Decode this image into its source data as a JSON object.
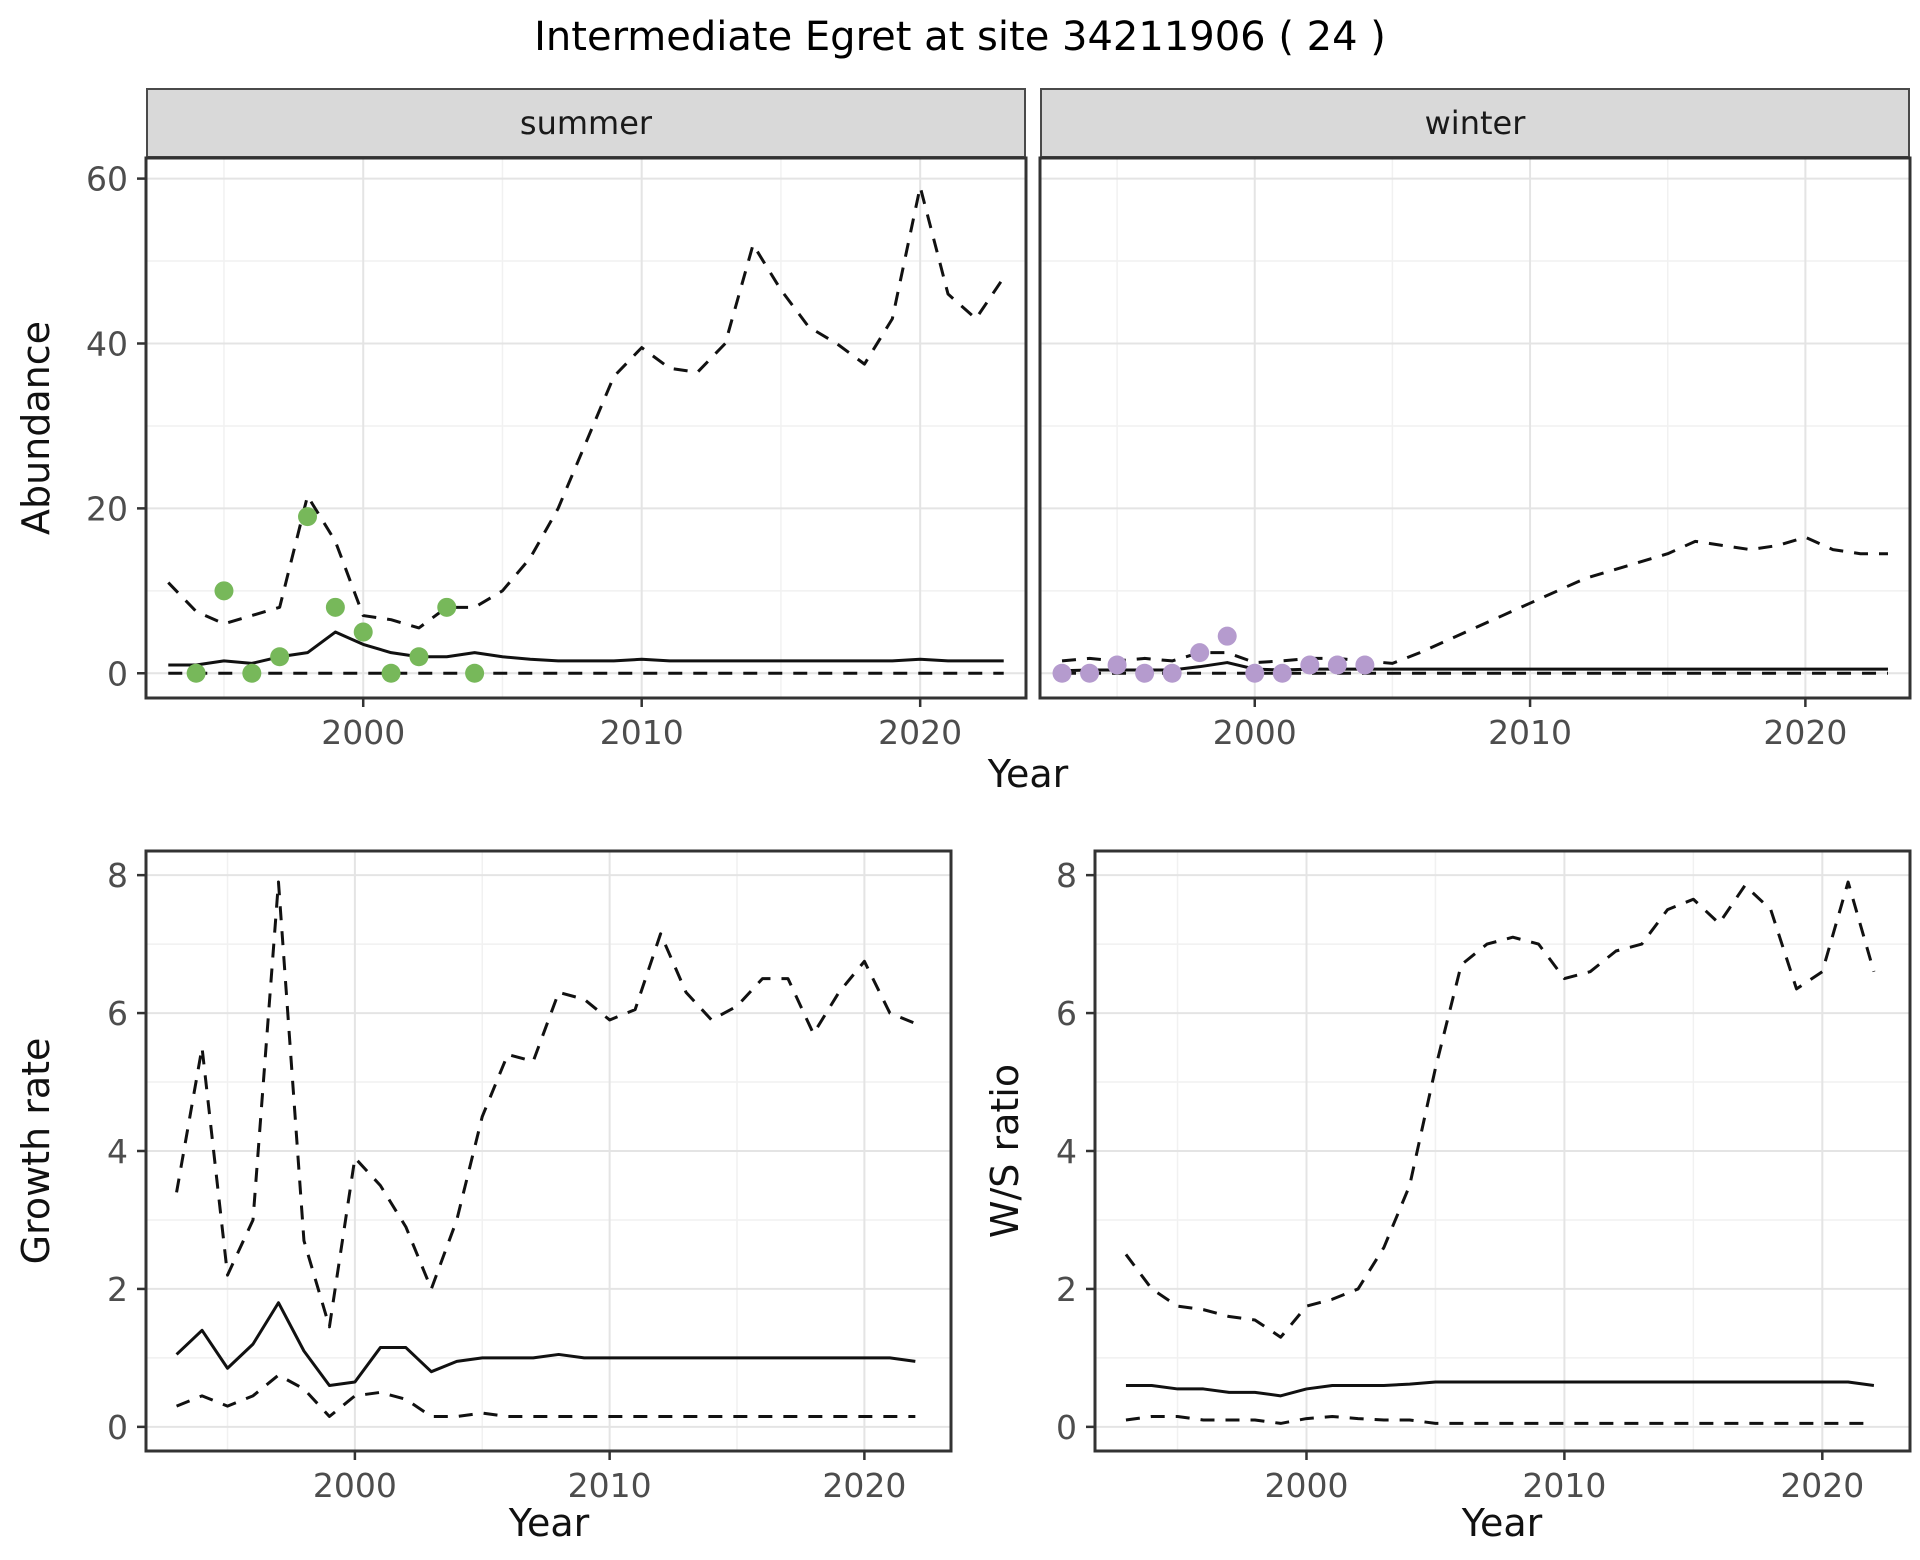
{
  "title": "Intermediate Egret at site 34211906 ( 24 )",
  "panels": {
    "abundance": {
      "ylabel": "Abundance",
      "xlabel": "Year",
      "facets": [
        {
          "label": "summer"
        },
        {
          "label": "winter"
        }
      ]
    },
    "growth": {
      "ylabel": "Growth rate",
      "xlabel": "Year"
    },
    "ws": {
      "ylabel": "W/S ratio",
      "xlabel": "Year"
    }
  },
  "colors": {
    "line": "#111111",
    "border": "#333333",
    "grid_major": "#e4e4e4",
    "grid_minor": "#f1f1f1",
    "tick_text": "#4d4d4d",
    "strip_bg": "#d9d9d9",
    "summer_points": "#77b85a",
    "winter_points": "#b59bce"
  },
  "chart_data": [
    {
      "name": "summer-abundance",
      "type": "line",
      "facet": "summer",
      "xlabel": "Year",
      "ylabel": "Abundance",
      "x": [
        1993,
        1994,
        1995,
        1996,
        1997,
        1998,
        1999,
        2000,
        2001,
        2002,
        2003,
        2004,
        2005,
        2006,
        2007,
        2008,
        2009,
        2010,
        2011,
        2012,
        2013,
        2014,
        2015,
        2016,
        2017,
        2018,
        2019,
        2020,
        2021,
        2022,
        2023
      ],
      "xlim": [
        1992.2,
        2023.8
      ],
      "ylim": [
        -3,
        62.5
      ],
      "xticks": [
        2000,
        2010,
        2020
      ],
      "xminor": [
        1995,
        2005,
        2015
      ],
      "yticks": [
        0,
        20,
        40,
        60
      ],
      "yminor": [
        10,
        30,
        50
      ],
      "show_ytick_labels": true,
      "series": [
        {
          "name": "upper-ci",
          "style": "dashed",
          "values": [
            11,
            7.5,
            6,
            7,
            8,
            21.5,
            16,
            7,
            6.5,
            5.5,
            8,
            8,
            10,
            14,
            20,
            28,
            36,
            39.5,
            37,
            36.5,
            40,
            52,
            46.5,
            42,
            40,
            37.5,
            43,
            59,
            46,
            43,
            48
          ]
        },
        {
          "name": "median",
          "style": "solid",
          "values": [
            1,
            1,
            1.5,
            1.2,
            2,
            2.5,
            5,
            3.5,
            2.5,
            2,
            2,
            2.5,
            2,
            1.7,
            1.5,
            1.5,
            1.5,
            1.7,
            1.5,
            1.5,
            1.5,
            1.5,
            1.5,
            1.5,
            1.5,
            1.5,
            1.5,
            1.7,
            1.5,
            1.5,
            1.5
          ]
        },
        {
          "name": "lower-ci",
          "style": "dashed",
          "values": [
            0,
            0,
            0,
            0,
            0,
            0,
            0,
            0,
            0,
            0,
            0,
            0,
            0,
            0,
            0,
            0,
            0,
            0,
            0,
            0,
            0,
            0,
            0,
            0,
            0,
            0,
            0,
            0,
            0,
            0,
            0
          ]
        }
      ],
      "points": {
        "name": "observed-counts",
        "color_key": "summer_points",
        "x": [
          1994,
          1995,
          1996,
          1997,
          1998,
          1999,
          2000,
          2001,
          2002,
          2003,
          2004
        ],
        "y": [
          0,
          10,
          0,
          2,
          19,
          8,
          5,
          0,
          2,
          8,
          0
        ]
      }
    },
    {
      "name": "winter-abundance",
      "type": "line",
      "facet": "winter",
      "xlabel": "Year",
      "ylabel": "Abundance",
      "x": [
        1993,
        1994,
        1995,
        1996,
        1997,
        1998,
        1999,
        2000,
        2001,
        2002,
        2003,
        2004,
        2005,
        2006,
        2007,
        2008,
        2009,
        2010,
        2011,
        2012,
        2013,
        2014,
        2015,
        2016,
        2017,
        2018,
        2019,
        2020,
        2021,
        2022,
        2023
      ],
      "xlim": [
        1992.2,
        2023.8
      ],
      "ylim": [
        -3,
        62.5
      ],
      "xticks": [
        2000,
        2010,
        2020
      ],
      "xminor": [
        1995,
        2005,
        2015
      ],
      "yticks": [
        0,
        20,
        40,
        60
      ],
      "yminor": [
        10,
        30,
        50
      ],
      "show_ytick_labels": false,
      "series": [
        {
          "name": "upper-ci",
          "style": "dashed",
          "values": [
            1.5,
            1.8,
            1.5,
            1.8,
            1.5,
            2.5,
            2.5,
            1.3,
            1.5,
            1.8,
            1.8,
            1.5,
            1.2,
            2.5,
            4,
            5.5,
            7,
            8.5,
            10,
            11.5,
            12.5,
            13.5,
            14.5,
            16,
            15.5,
            15,
            15.5,
            16.5,
            15,
            14.5,
            14.5
          ]
        },
        {
          "name": "median",
          "style": "solid",
          "values": [
            0.3,
            0.4,
            0.4,
            0.4,
            0.4,
            0.8,
            1.3,
            0.5,
            0.4,
            0.5,
            0.5,
            0.5,
            0.5,
            0.5,
            0.5,
            0.5,
            0.5,
            0.5,
            0.5,
            0.5,
            0.5,
            0.5,
            0.5,
            0.5,
            0.5,
            0.5,
            0.5,
            0.5,
            0.5,
            0.5,
            0.5
          ]
        },
        {
          "name": "lower-ci",
          "style": "dashed",
          "values": [
            0,
            0,
            0,
            0,
            0,
            0,
            0,
            0,
            0,
            0,
            0,
            0,
            0,
            0,
            0,
            0,
            0,
            0,
            0,
            0,
            0,
            0,
            0,
            0,
            0,
            0,
            0,
            0,
            0,
            0,
            0
          ]
        }
      ],
      "points": {
        "name": "observed-counts",
        "color_key": "winter_points",
        "x": [
          1993,
          1994,
          1995,
          1996,
          1997,
          1998,
          1999,
          2000,
          2001,
          2002,
          2003,
          2004
        ],
        "y": [
          0,
          0,
          1,
          0,
          0,
          2.5,
          4.5,
          0,
          0,
          1,
          1,
          1
        ]
      }
    },
    {
      "name": "growth-rate",
      "type": "line",
      "xlabel": "Year",
      "ylabel": "Growth rate",
      "x": [
        1993,
        1994,
        1995,
        1996,
        1997,
        1998,
        1999,
        2000,
        2001,
        2002,
        2003,
        2004,
        2005,
        2006,
        2007,
        2008,
        2009,
        2010,
        2011,
        2012,
        2013,
        2014,
        2015,
        2016,
        2017,
        2018,
        2019,
        2020,
        2021,
        2022
      ],
      "xlim": [
        1991.8,
        2023.4
      ],
      "ylim": [
        -0.35,
        8.35
      ],
      "xticks": [
        2000,
        2010,
        2020
      ],
      "xminor": [
        1995,
        2005,
        2015
      ],
      "yticks": [
        0,
        2,
        4,
        6,
        8
      ],
      "yminor": [
        1,
        3,
        5,
        7
      ],
      "show_ytick_labels": true,
      "series": [
        {
          "name": "upper-ci",
          "style": "dashed",
          "values": [
            3.4,
            5.5,
            2.2,
            3.0,
            7.9,
            2.7,
            1.45,
            3.9,
            3.5,
            2.9,
            2.0,
            3.0,
            4.5,
            5.4,
            5.3,
            6.3,
            6.2,
            5.9,
            6.05,
            7.15,
            6.3,
            5.9,
            6.1,
            6.5,
            6.5,
            5.7,
            6.3,
            6.75,
            6.0,
            5.85
          ]
        },
        {
          "name": "median",
          "style": "solid",
          "values": [
            1.05,
            1.4,
            0.85,
            1.2,
            1.8,
            1.1,
            0.6,
            0.65,
            1.15,
            1.15,
            0.8,
            0.95,
            1.0,
            1.0,
            1.0,
            1.05,
            1.0,
            1.0,
            1.0,
            1.0,
            1.0,
            1.0,
            1.0,
            1.0,
            1.0,
            1.0,
            1.0,
            1.0,
            1.0,
            0.95
          ]
        },
        {
          "name": "lower-ci",
          "style": "dashed",
          "values": [
            0.3,
            0.45,
            0.3,
            0.45,
            0.75,
            0.55,
            0.15,
            0.45,
            0.5,
            0.4,
            0.15,
            0.15,
            0.2,
            0.15,
            0.15,
            0.15,
            0.15,
            0.15,
            0.15,
            0.15,
            0.15,
            0.15,
            0.15,
            0.15,
            0.15,
            0.15,
            0.15,
            0.15,
            0.15,
            0.15
          ]
        }
      ]
    },
    {
      "name": "ws-ratio",
      "type": "line",
      "xlabel": "Year",
      "ylabel": "W/S ratio",
      "x": [
        1993,
        1994,
        1995,
        1996,
        1997,
        1998,
        1999,
        2000,
        2001,
        2002,
        2003,
        2004,
        2005,
        2006,
        2007,
        2008,
        2009,
        2010,
        2011,
        2012,
        2013,
        2014,
        2015,
        2016,
        2017,
        2018,
        2019,
        2020,
        2021,
        2022
      ],
      "xlim": [
        1991.8,
        2023.4
      ],
      "ylim": [
        -0.35,
        8.35
      ],
      "xticks": [
        2000,
        2010,
        2020
      ],
      "xminor": [
        1995,
        2005,
        2015
      ],
      "yticks": [
        0,
        2,
        4,
        6,
        8
      ],
      "yminor": [
        1,
        3,
        5,
        7
      ],
      "show_ytick_labels": true,
      "series": [
        {
          "name": "upper-ci",
          "style": "dashed",
          "values": [
            2.5,
            2.0,
            1.75,
            1.7,
            1.6,
            1.55,
            1.3,
            1.75,
            1.85,
            2.0,
            2.6,
            3.5,
            5.2,
            6.7,
            7.0,
            7.1,
            7.0,
            6.5,
            6.6,
            6.9,
            7.0,
            7.5,
            7.65,
            7.3,
            7.85,
            7.5,
            6.35,
            6.6,
            7.9,
            6.6
          ]
        },
        {
          "name": "median",
          "style": "solid",
          "values": [
            0.6,
            0.6,
            0.55,
            0.55,
            0.5,
            0.5,
            0.45,
            0.55,
            0.6,
            0.6,
            0.6,
            0.62,
            0.65,
            0.65,
            0.65,
            0.65,
            0.65,
            0.65,
            0.65,
            0.65,
            0.65,
            0.65,
            0.65,
            0.65,
            0.65,
            0.65,
            0.65,
            0.65,
            0.65,
            0.6
          ]
        },
        {
          "name": "lower-ci",
          "style": "dashed",
          "values": [
            0.1,
            0.15,
            0.15,
            0.1,
            0.1,
            0.1,
            0.05,
            0.12,
            0.15,
            0.12,
            0.1,
            0.1,
            0.05,
            0.05,
            0.05,
            0.05,
            0.05,
            0.05,
            0.05,
            0.05,
            0.05,
            0.05,
            0.05,
            0.05,
            0.05,
            0.05,
            0.05,
            0.05,
            0.05,
            0.05
          ]
        }
      ]
    }
  ]
}
